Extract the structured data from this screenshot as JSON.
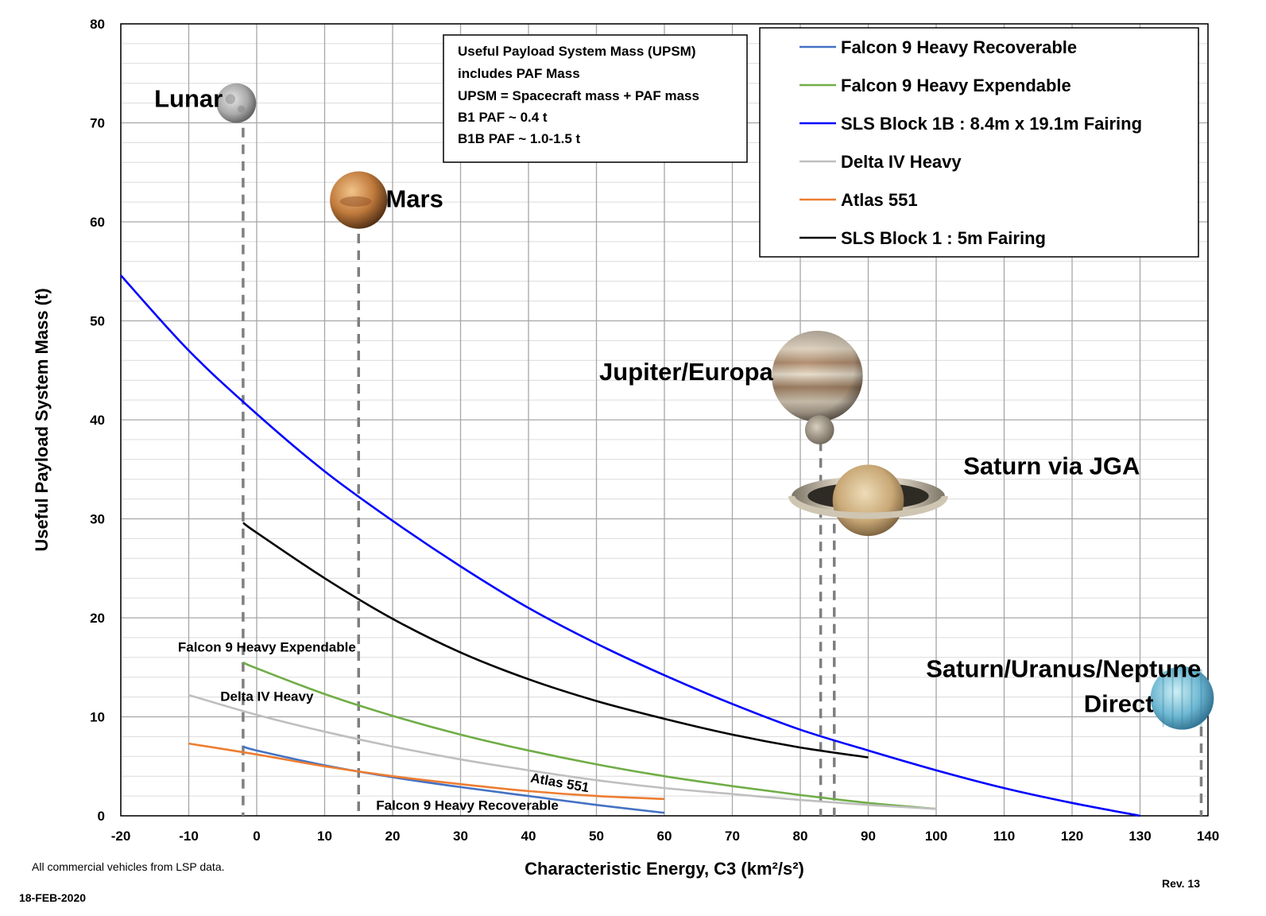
{
  "chart_data": {
    "type": "line",
    "xlabel": "Characteristic Energy, C3 (km²/s²)",
    "ylabel": "Useful Payload System Mass (t)",
    "xlim": [
      -20,
      140
    ],
    "ylim": [
      0,
      80
    ],
    "xticks": [
      -20,
      -10,
      0,
      10,
      20,
      30,
      40,
      50,
      60,
      70,
      80,
      90,
      100,
      110,
      120,
      130,
      140
    ],
    "yticks": [
      0,
      10,
      20,
      30,
      40,
      50,
      60,
      70,
      80
    ],
    "grid": true,
    "legend_position": "top-right",
    "series": [
      {
        "name": "Falcon 9 Heavy Recoverable",
        "color": "#4472C4",
        "x": [
          -2,
          0,
          10,
          20,
          30,
          40,
          50,
          60
        ],
        "y": [
          7.0,
          6.6,
          5.1,
          3.9,
          2.9,
          2.0,
          1.1,
          0.3
        ]
      },
      {
        "name": "Falcon 9 Heavy Expendable",
        "color": "#70AD47",
        "x": [
          -2,
          0,
          10,
          20,
          30,
          40,
          50,
          60,
          70,
          80,
          90,
          100
        ],
        "y": [
          15.5,
          14.9,
          12.3,
          10.1,
          8.2,
          6.6,
          5.2,
          4.0,
          3.0,
          2.1,
          1.3,
          0.7
        ]
      },
      {
        "name": "SLS Block 1B : 8.4m x 19.1m Fairing",
        "color": "#0000FF",
        "x": [
          -20,
          -10,
          0,
          10,
          20,
          30,
          40,
          50,
          60,
          70,
          80,
          90,
          100,
          110,
          120,
          130
        ],
        "y": [
          54.6,
          47.0,
          40.6,
          34.8,
          29.8,
          25.2,
          21.0,
          17.4,
          14.2,
          11.3,
          8.7,
          6.6,
          4.6,
          2.8,
          1.3,
          0.0
        ]
      },
      {
        "name": "Delta IV Heavy",
        "color": "#BFBFBF",
        "x": [
          -10,
          0,
          10,
          20,
          30,
          40,
          50,
          60,
          70,
          80,
          90,
          100
        ],
        "y": [
          12.2,
          10.2,
          8.5,
          7.0,
          5.7,
          4.6,
          3.6,
          2.8,
          2.2,
          1.6,
          1.1,
          0.7
        ]
      },
      {
        "name": "Atlas 551",
        "color": "#ED7D31",
        "x": [
          -10,
          0,
          10,
          20,
          30,
          40,
          50,
          60
        ],
        "y": [
          7.3,
          6.2,
          5.0,
          4.0,
          3.2,
          2.5,
          2.0,
          1.7
        ]
      },
      {
        "name": "SLS Block 1 : 5m Fairing",
        "color": "#000000",
        "x": [
          -2,
          0,
          10,
          20,
          30,
          40,
          50,
          60,
          70,
          80,
          90
        ],
        "y": [
          29.6,
          28.6,
          24.0,
          19.9,
          16.5,
          13.8,
          11.6,
          9.8,
          8.2,
          6.9,
          5.9
        ]
      }
    ],
    "inline_labels": [
      {
        "text": "Falcon 9 Heavy Expendable",
        "x": 1.5,
        "y": 16.6,
        "rotate": 0
      },
      {
        "text": "Delta IV Heavy",
        "x": 1.5,
        "y": 11.6,
        "rotate": 0
      },
      {
        "text": "Atlas 551",
        "x": 44.5,
        "y": 2.9,
        "rotate": 10
      },
      {
        "text": "Falcon 9 Heavy Recoverable",
        "x": 31,
        "y": 0.6,
        "rotate": 0
      }
    ],
    "destinations": [
      {
        "name": "Lunar",
        "c3": -2,
        "label_x": -5,
        "label_y": 71.6,
        "anchor": "end",
        "planet_x": -3,
        "planet_y": 72.0,
        "planet_r": 2.0,
        "planet": "moon",
        "line_top": 69.5
      },
      {
        "name": "Mars",
        "c3": 15,
        "label_x": 19,
        "label_y": 61.5,
        "anchor": "start",
        "planet_x": 15,
        "planet_y": 62.2,
        "planet_r": 2.9,
        "planet": "mars",
        "line_top": 58.8
      },
      {
        "name": "Jupiter/Europa",
        "c3": 83,
        "label_x": 76,
        "label_y": 44.0,
        "anchor": "end",
        "planet_x": 82.5,
        "planet_y": 44.4,
        "planet_r": 4.6,
        "planet": "jupiter",
        "line_top": 39.5
      },
      {
        "name": "Saturn via JGA",
        "c3": 85,
        "label_x": 104,
        "label_y": 34.5,
        "anchor": "start",
        "planet_x": 90,
        "planet_y": 32.3,
        "planet_r": 3.6,
        "planet": "saturn",
        "line_top": 29.5
      },
      {
        "name": "Saturn/Uranus/Neptune",
        "name2": "Direct",
        "c3": 139,
        "label_x": 139,
        "label_y": 14.0,
        "anchor": "end",
        "label2_x": 132,
        "label2_y": 10.5,
        "planet_x": 136.2,
        "planet_y": 11.9,
        "planet_r": 3.2,
        "planet": "uranus",
        "line_top": 9.0
      }
    ],
    "note_lines": [
      "Useful Payload System Mass (UPSM)",
      "includes PAF Mass",
      "UPSM = Spacecraft mass + PAF mass",
      "B1 PAF ~ 0.4 t",
      "B1B PAF ~ 1.0-1.5 t"
    ]
  },
  "footer": {
    "source": "All commercial vehicles from LSP data.",
    "date": "18-FEB-2020",
    "revision": "Rev. 13"
  }
}
